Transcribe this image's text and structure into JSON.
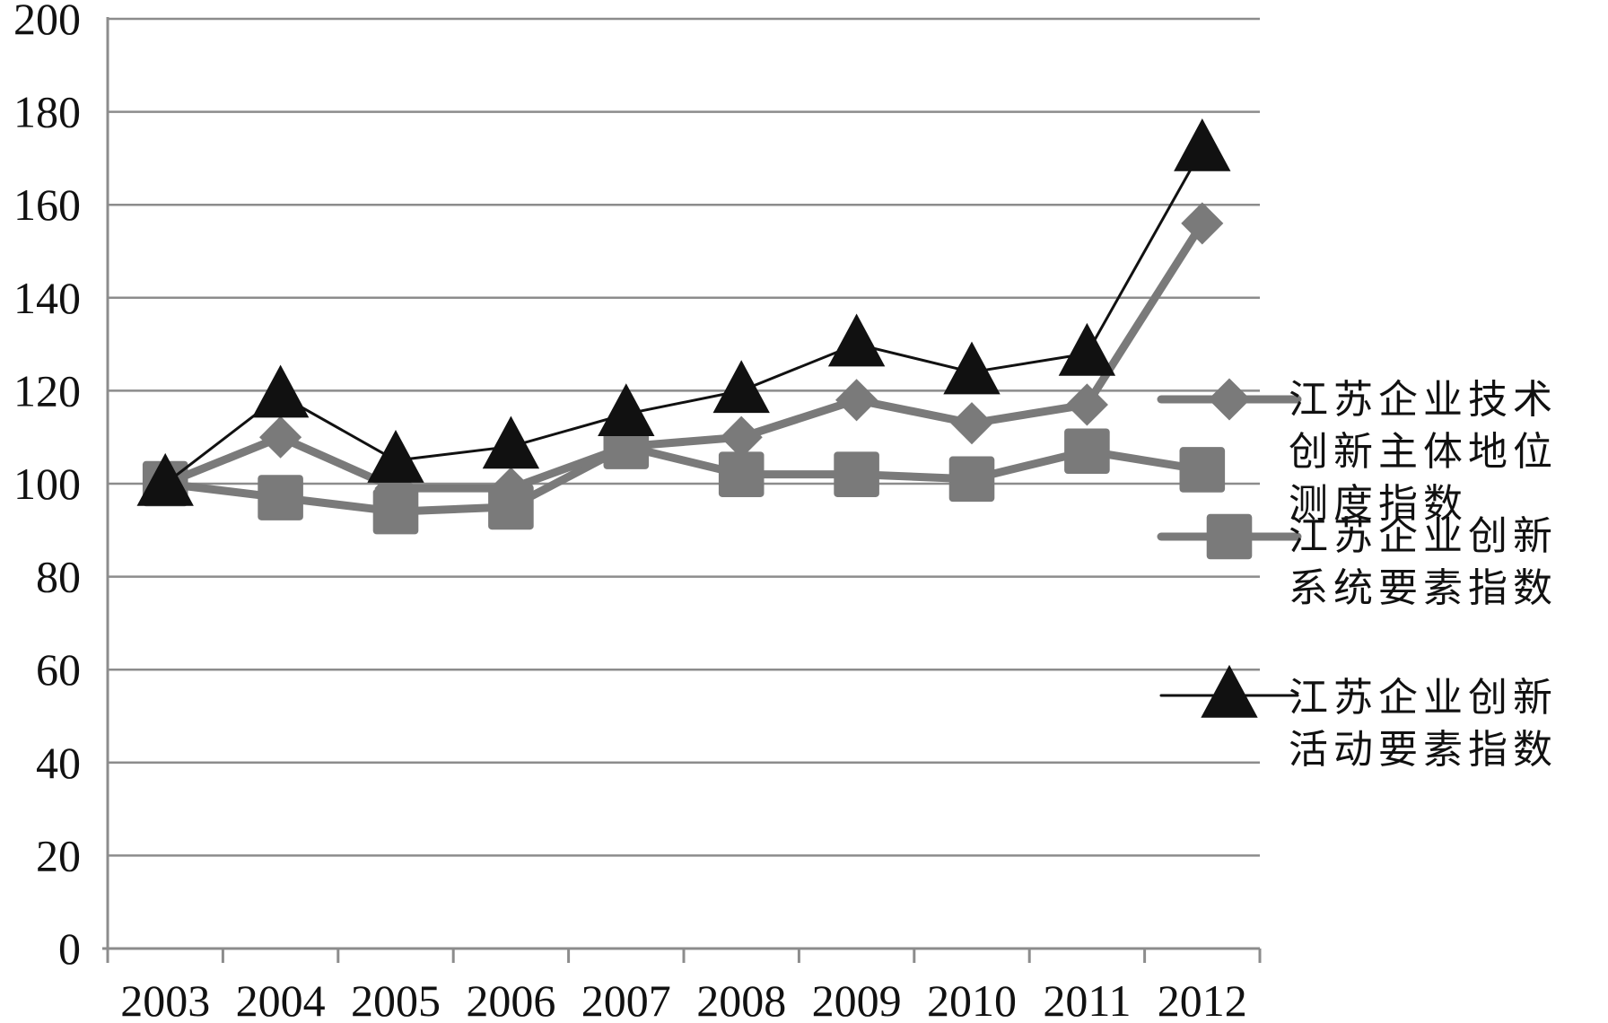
{
  "chart_data": {
    "type": "line",
    "title": "",
    "xlabel": "",
    "ylabel": "",
    "categories": [
      "2003",
      "2004",
      "2005",
      "2006",
      "2007",
      "2008",
      "2009",
      "2010",
      "2011",
      "2012"
    ],
    "ylim": [
      0,
      200
    ],
    "yticks": [
      "0",
      "20",
      "40",
      "60",
      "80",
      "100",
      "120",
      "140",
      "160",
      "180",
      "200"
    ],
    "grid": "horizontal",
    "legend_position": "right",
    "series": [
      {
        "name_lines": [
          "江苏企业技术",
          "创新主体地位",
          "测度指数"
        ],
        "values": [
          100,
          110,
          99,
          99,
          108,
          110,
          118,
          113,
          117,
          156
        ],
        "marker": "diamond",
        "color": "#7a7a7a"
      },
      {
        "name_lines": [
          "江苏企业创新",
          "系统要素指数"
        ],
        "values": [
          100,
          97,
          94,
          95,
          108,
          102,
          102,
          101,
          107,
          103
        ],
        "marker": "square",
        "color": "#7a7a7a"
      },
      {
        "name_lines": [
          "江苏企业创新",
          "活动要素指数"
        ],
        "values": [
          100,
          119,
          105,
          108,
          115,
          120,
          130,
          124,
          128,
          172
        ],
        "marker": "triangle",
        "color": "#111111"
      }
    ]
  }
}
